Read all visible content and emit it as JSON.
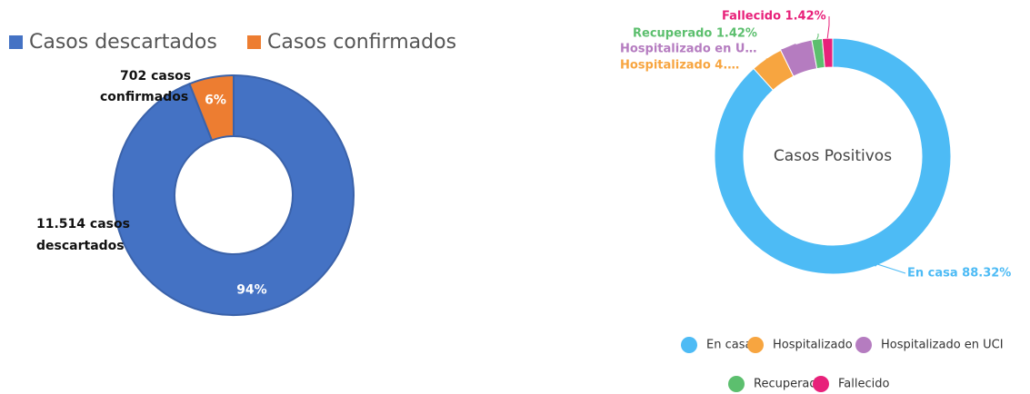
{
  "chart_data": [
    {
      "type": "donut",
      "categories": [
        "Casos descartados",
        "Casos confirmados"
      ],
      "values": [
        94,
        6
      ],
      "value_labels": [
        "94%",
        "6%"
      ],
      "colors": [
        "#4472c4",
        "#ed7d31"
      ],
      "annotations": [
        "11.514 casos",
        "descartados",
        "702  casos",
        "confirmados"
      ],
      "legend": "top"
    },
    {
      "type": "donut",
      "title": "Casos Positivos",
      "categories": [
        "En casa",
        "Hospitalizado",
        "Hospitalizado en UCI",
        "Recuperado",
        "Fallecido"
      ],
      "values": [
        88.32,
        4.42,
        4.42,
        1.42,
        1.42
      ],
      "value_labels": [
        "En casa 88.32%",
        "Hospitalizado 4.…",
        "Hospitalizado en U…",
        "Recuperado 1.42%",
        "Fallecido 1.42%"
      ],
      "colors": [
        "#4dbbf5",
        "#f7a540",
        "#b57cc0",
        "#5cbf6e",
        "#e8217a"
      ],
      "legend": "bottom"
    }
  ]
}
